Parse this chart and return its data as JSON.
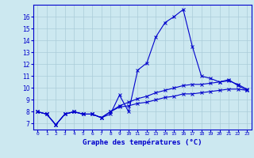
{
  "title": "",
  "xlabel": "Graphe des températures (°C)",
  "ylabel": "",
  "bg_color": "#cce8f0",
  "grid_color": "#aaccd8",
  "line_color": "#0000cc",
  "x_ticks": [
    0,
    1,
    2,
    3,
    4,
    5,
    6,
    7,
    8,
    9,
    10,
    11,
    12,
    13,
    14,
    15,
    16,
    17,
    18,
    19,
    20,
    21,
    22,
    23
  ],
  "y_ticks": [
    7,
    8,
    9,
    10,
    11,
    12,
    13,
    14,
    15,
    16
  ],
  "xlim": [
    -0.5,
    23.5
  ],
  "ylim": [
    6.5,
    17.0
  ],
  "line1": [
    8.0,
    7.8,
    6.9,
    7.8,
    8.0,
    7.8,
    7.8,
    7.5,
    7.8,
    9.4,
    8.0,
    11.5,
    12.1,
    14.3,
    15.5,
    16.0,
    16.6,
    13.5,
    11.0,
    10.8,
    10.5,
    10.7,
    10.2,
    9.8
  ],
  "line2": [
    8.0,
    7.8,
    6.9,
    7.8,
    8.0,
    7.8,
    7.8,
    7.5,
    8.0,
    8.4,
    8.5,
    8.7,
    8.8,
    9.0,
    9.2,
    9.3,
    9.5,
    9.5,
    9.6,
    9.7,
    9.8,
    9.9,
    9.9,
    9.8
  ],
  "line3": [
    8.0,
    7.8,
    6.9,
    7.8,
    8.0,
    7.8,
    7.8,
    7.5,
    8.0,
    8.5,
    8.8,
    9.1,
    9.3,
    9.6,
    9.8,
    10.0,
    10.2,
    10.3,
    10.3,
    10.4,
    10.5,
    10.6,
    10.3,
    9.9
  ]
}
